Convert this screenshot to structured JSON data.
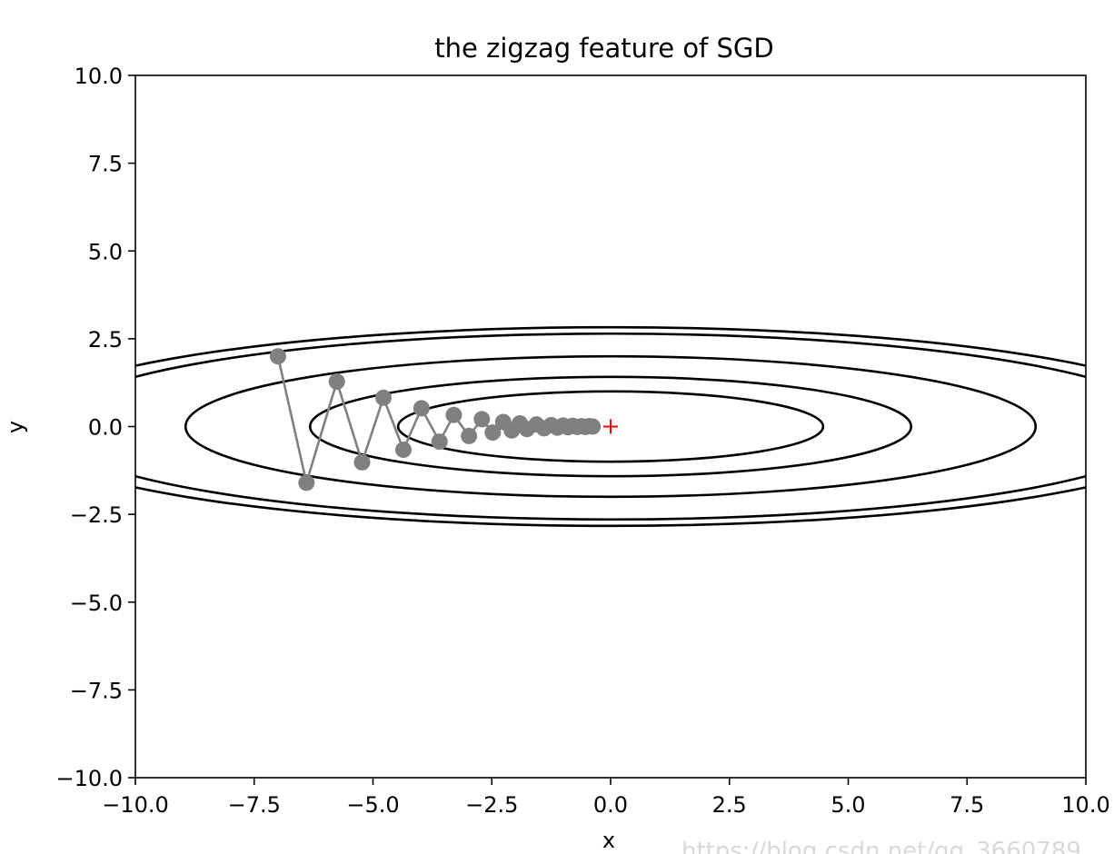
{
  "chart_data": {
    "type": "line",
    "title": "the zigzag feature of SGD",
    "xlabel": "x",
    "ylabel": "y",
    "xlim": [
      -10,
      10
    ],
    "ylim": [
      -10,
      10
    ],
    "x_ticks": [
      -10,
      -7.5,
      -5,
      -2.5,
      0,
      2.5,
      5,
      7.5,
      10
    ],
    "y_ticks": [
      -10,
      -7.5,
      -5,
      -2.5,
      0,
      2.5,
      5,
      7.5,
      10
    ],
    "x_tick_labels": [
      "−10.0",
      "−7.5",
      "−5.0",
      "−2.5",
      "0.0",
      "2.5",
      "5.0",
      "7.5",
      "10.0"
    ],
    "y_tick_labels": [
      "−10.0",
      "−7.5",
      "−5.0",
      "−2.5",
      "0.0",
      "2.5",
      "5.0",
      "7.5",
      "10.0"
    ],
    "grid": false,
    "contour": {
      "function": "f(x, y) = 0.1 x^2 + 2 y^2",
      "center": [
        0,
        0
      ],
      "levels": [
        2.0,
        4.0,
        8.0,
        14.0,
        16.0
      ],
      "color": "#000000"
    },
    "path": {
      "color": "#808080",
      "marker": "circle",
      "x": [
        -7.0,
        -6.4,
        -5.76,
        -5.23,
        -4.78,
        -4.36,
        -3.98,
        -3.6,
        -3.3,
        -2.98,
        -2.71,
        -2.48,
        -2.26,
        -2.08,
        -1.91,
        -1.76,
        -1.56,
        -1.4,
        -1.25,
        -1.12,
        -1.0,
        -0.9,
        -0.8,
        -0.7,
        -0.61,
        -0.53,
        -0.45,
        -0.38
      ],
      "y": [
        2.0,
        -1.6,
        1.28,
        -1.02,
        0.82,
        -0.66,
        0.52,
        -0.43,
        0.33,
        -0.27,
        0.21,
        -0.17,
        0.13,
        -0.11,
        0.09,
        -0.07,
        0.06,
        -0.05,
        0.04,
        -0.03,
        0.03,
        -0.02,
        0.02,
        -0.01,
        0.01,
        -0.01,
        0.01,
        0.0
      ]
    },
    "minimum": {
      "x": 0,
      "y": 0,
      "marker": "+",
      "color": "#ff0000"
    }
  },
  "watermark": "https://blog.csdn.net/qq_3660789…"
}
